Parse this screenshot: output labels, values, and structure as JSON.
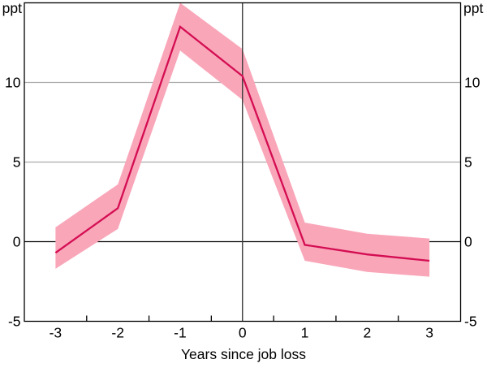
{
  "header": {
    "left_unit": "ppt",
    "right_unit": "ppt"
  },
  "axis": {
    "x_title": "Years since job loss"
  },
  "chart_data": {
    "type": "line",
    "title": "",
    "xlabel": "Years since job loss",
    "ylabel_left": "ppt",
    "ylabel_right": "ppt",
    "x": [
      -3,
      -2,
      -1,
      0,
      1,
      2,
      3
    ],
    "series": [
      {
        "name": "estimate",
        "role": "line",
        "values": [
          -0.7,
          2.1,
          13.5,
          10.4,
          -0.2,
          -0.8,
          -1.2
        ]
      },
      {
        "name": "confidence-upper",
        "role": "band-upper",
        "values": [
          0.9,
          3.6,
          15.0,
          12.1,
          1.2,
          0.5,
          0.2
        ]
      },
      {
        "name": "confidence-lower",
        "role": "band-lower",
        "values": [
          -1.7,
          0.8,
          12.0,
          8.9,
          -1.2,
          -1.9,
          -2.2
        ]
      }
    ],
    "xlim": [
      -3.5,
      3.5
    ],
    "ylim": [
      -5,
      15
    ],
    "y_ticks": [
      -5,
      0,
      5,
      10
    ],
    "y_tick_labels": [
      "-5",
      "0",
      "5",
      "10"
    ],
    "y_tick_sides": "both",
    "x_tick_label_values": [
      -3,
      -2,
      -1,
      0,
      1,
      2,
      3
    ],
    "x_tick_labels": [
      "-3",
      "-2",
      "-1",
      "0",
      "1",
      "2",
      "3"
    ],
    "x_tick_marks": [
      -2.5,
      -1.5,
      -0.5,
      0.5,
      1.5,
      2.5
    ],
    "gridline_values": [
      5,
      10
    ],
    "zero_line_value": 0,
    "vertical_line_x": 0,
    "grid_on": true,
    "legend": "none",
    "colors": {
      "line": "#D40D52",
      "band": "#F9A6B9",
      "grid": "#ABABAB",
      "frame": "#000000",
      "zero_line": "#000000",
      "vertical_line": "#3A3A3A",
      "text": "#000000"
    }
  }
}
